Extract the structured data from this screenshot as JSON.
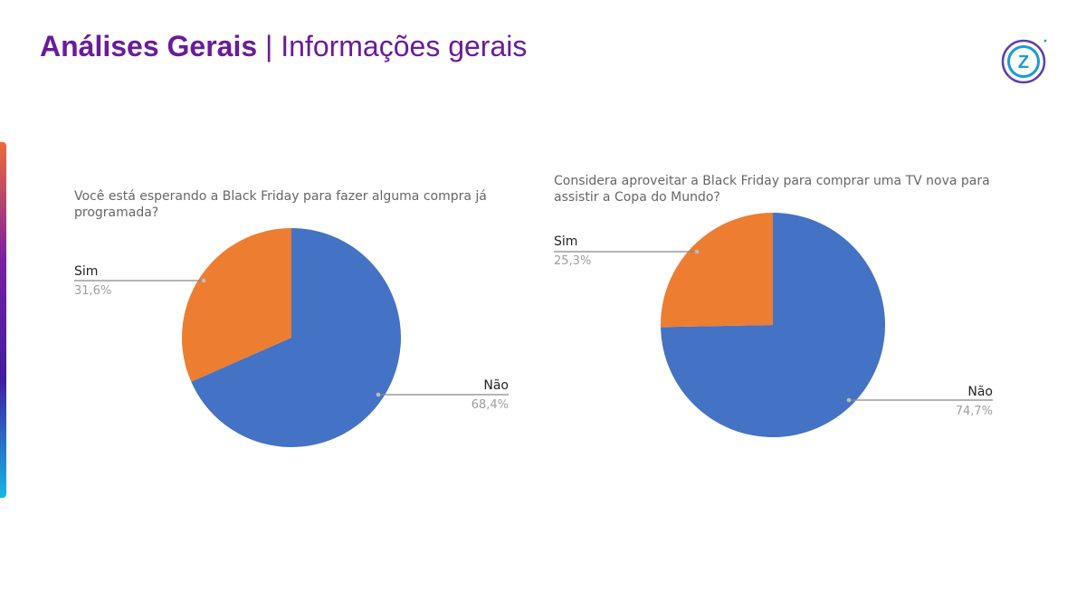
{
  "header": {
    "title_bold": "Análises Gerais",
    "title_sep": " | ",
    "title_rest": "Informações gerais"
  },
  "logo": {
    "icon": "z-circle-logo-icon",
    "letter": "Z",
    "color": "#1a9bd7",
    "ring_color": "#5b3fa8"
  },
  "accent": {
    "bar_gradient": [
      "#f06a3a",
      "#7b1fa2",
      "#3f1d9e",
      "#14b8e6"
    ]
  },
  "chart_data": [
    {
      "type": "pie",
      "title_lines": [
        "Você está esperando a Black Friday para fazer alguma compra já",
        "programada?"
      ],
      "slices": [
        {
          "label": "Não",
          "value": 68.4,
          "value_label": "68,4%",
          "color": "#4472c4"
        },
        {
          "label": "Sim",
          "value": 31.6,
          "value_label": "31,6%",
          "color": "#ed7d31"
        }
      ]
    },
    {
      "type": "pie",
      "title_lines": [
        "Considera aproveitar a Black Friday para comprar uma TV nova para",
        "assistir a Copa do Mundo?"
      ],
      "slices": [
        {
          "label": "Não",
          "value": 74.7,
          "value_label": "74,7%",
          "color": "#4472c4"
        },
        {
          "label": "Sim",
          "value": 25.3,
          "value_label": "25,3%",
          "color": "#ed7d31"
        }
      ]
    }
  ]
}
